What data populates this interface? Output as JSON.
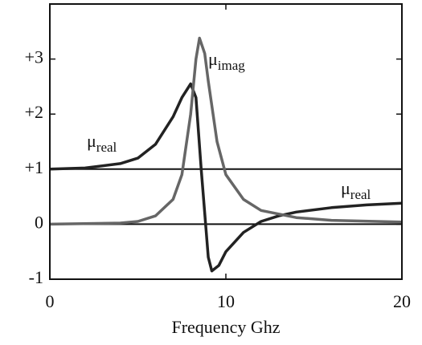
{
  "chart_data": {
    "type": "line",
    "xlabel": "Frequency Ghz",
    "xlim": [
      0,
      20
    ],
    "xticks": [
      0,
      10,
      20
    ],
    "ylim": [
      -1,
      4
    ],
    "yticks": [
      -1,
      0,
      {
        "value": 1,
        "label": "+1"
      },
      {
        "value": 2,
        "label": "+2"
      },
      {
        "value": 3,
        "label": "+3"
      }
    ],
    "hlines": [
      0,
      1
    ],
    "series": [
      {
        "color": "#222222",
        "x": [
          0,
          2,
          4,
          5,
          6,
          7,
          7.5,
          8,
          8.3,
          8.6,
          9,
          9.2,
          9.6,
          10,
          11,
          12,
          13,
          14,
          16,
          18,
          20
        ],
        "values": [
          1.0,
          1.02,
          1.1,
          1.2,
          1.45,
          1.95,
          2.3,
          2.55,
          2.3,
          1.0,
          -0.6,
          -0.85,
          -0.75,
          -0.5,
          -0.15,
          0.05,
          0.15,
          0.22,
          0.3,
          0.35,
          0.38
        ]
      },
      {
        "color": "#666666",
        "x": [
          0,
          4,
          5,
          6,
          7,
          7.5,
          8,
          8.3,
          8.5,
          8.8,
          9,
          9.5,
          10,
          11,
          12,
          14,
          16,
          20
        ],
        "values": [
          0,
          0.02,
          0.05,
          0.15,
          0.45,
          0.9,
          2.0,
          3.0,
          3.38,
          3.1,
          2.6,
          1.5,
          0.9,
          0.45,
          0.25,
          0.12,
          0.07,
          0.04
        ]
      }
    ],
    "annotations": [
      {
        "text": "μ",
        "sub": "real"
      },
      {
        "text": "μ",
        "sub": "imag"
      },
      {
        "text": "μ",
        "sub": "real"
      }
    ]
  }
}
